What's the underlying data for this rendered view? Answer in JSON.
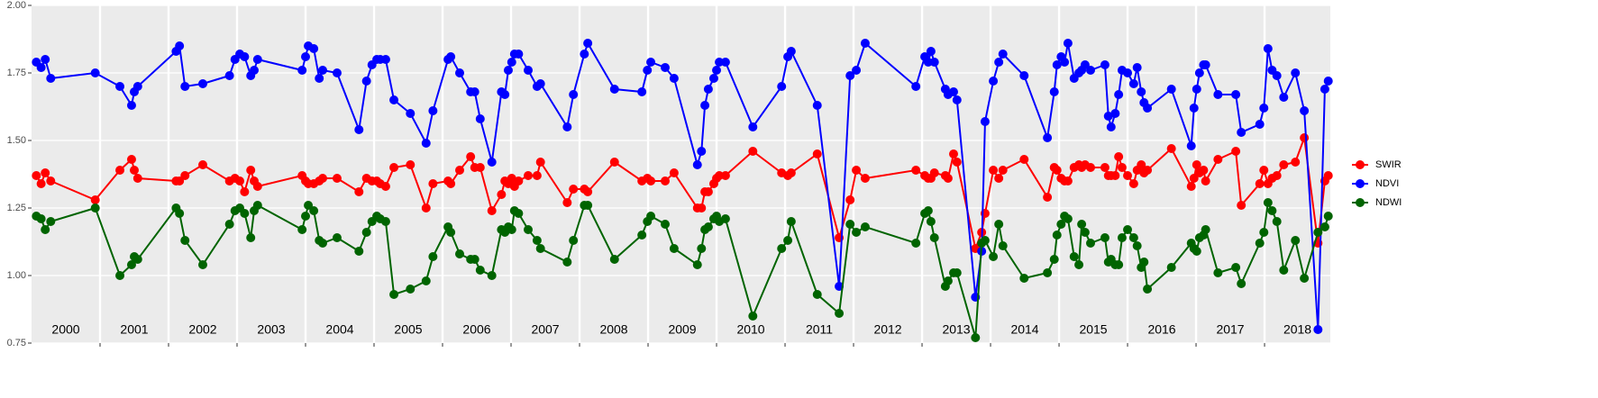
{
  "chart_data": {
    "type": "line",
    "x": [
      2000.07,
      2000.14,
      2000.2,
      2000.28,
      2000.93,
      2001.29,
      2001.46,
      2001.5,
      2001.55,
      2002.11,
      2002.16,
      2002.24,
      2002.5,
      2002.89,
      2002.97,
      2003.04,
      2003.11,
      2003.2,
      2003.25,
      2003.3,
      2003.95,
      2004.0,
      2004.04,
      2004.12,
      2004.2,
      2004.25,
      2004.46,
      2004.78,
      2004.89,
      2004.97,
      2005.04,
      2005.09,
      2005.17,
      2005.29,
      2005.53,
      2005.76,
      2005.86,
      2006.08,
      2006.12,
      2006.25,
      2006.41,
      2006.47,
      2006.55,
      2006.72,
      2006.86,
      2006.91,
      2006.96,
      2007.01,
      2007.05,
      2007.11,
      2007.25,
      2007.38,
      2007.43,
      2007.82,
      2007.91,
      2008.07,
      2008.12,
      2008.51,
      2008.91,
      2008.99,
      2009.04,
      2009.25,
      2009.38,
      2009.72,
      2009.78,
      2009.83,
      2009.88,
      2009.96,
      2010.0,
      2010.04,
      2010.13,
      2010.53,
      2010.95,
      2011.04,
      2011.09,
      2011.47,
      2011.79,
      2011.95,
      2012.04,
      2012.17,
      2012.91,
      2013.04,
      2013.09,
      2013.13,
      2013.18,
      2013.34,
      2013.38,
      2013.46,
      2013.51,
      2013.78,
      2013.87,
      2013.92,
      2014.04,
      2014.12,
      2014.18,
      2014.49,
      2014.83,
      2014.93,
      2014.97,
      2015.03,
      2015.08,
      2015.13,
      2015.22,
      2015.29,
      2015.33,
      2015.38,
      2015.46,
      2015.67,
      2015.72,
      2015.76,
      2015.82,
      2015.87,
      2015.92,
      2016.0,
      2016.09,
      2016.14,
      2016.2,
      2016.24,
      2016.29,
      2016.64,
      2016.93,
      2016.97,
      2017.01,
      2017.05,
      2017.11,
      2017.14,
      2017.32,
      2017.58,
      2017.66,
      2017.93,
      2017.99,
      2018.05,
      2018.11,
      2018.18,
      2018.28,
      2018.45,
      2018.58,
      2018.78,
      2018.88,
      2018.93
    ],
    "series": [
      {
        "name": "SWIR",
        "color": "#ff0000",
        "values": [
          1.37,
          1.34,
          1.38,
          1.35,
          1.28,
          1.39,
          1.43,
          1.39,
          1.36,
          1.35,
          1.35,
          1.37,
          1.41,
          1.35,
          1.36,
          1.35,
          1.31,
          1.39,
          1.35,
          1.33,
          1.37,
          1.35,
          1.34,
          1.34,
          1.35,
          1.36,
          1.36,
          1.31,
          1.36,
          1.35,
          1.35,
          1.34,
          1.33,
          1.4,
          1.41,
          1.25,
          1.34,
          1.35,
          1.34,
          1.39,
          1.44,
          1.4,
          1.4,
          1.24,
          1.3,
          1.35,
          1.34,
          1.36,
          1.33,
          1.35,
          1.37,
          1.37,
          1.42,
          1.27,
          1.32,
          1.32,
          1.31,
          1.42,
          1.35,
          1.36,
          1.35,
          1.35,
          1.38,
          1.25,
          1.25,
          1.31,
          1.31,
          1.34,
          1.36,
          1.37,
          1.37,
          1.46,
          1.38,
          1.37,
          1.38,
          1.45,
          1.14,
          1.28,
          1.39,
          1.36,
          1.39,
          1.37,
          1.36,
          1.36,
          1.38,
          1.37,
          1.36,
          1.45,
          1.42,
          1.1,
          1.16,
          1.23,
          1.39,
          1.36,
          1.39,
          1.43,
          1.29,
          1.4,
          1.39,
          1.36,
          1.35,
          1.35,
          1.4,
          1.41,
          1.4,
          1.41,
          1.4,
          1.4,
          1.37,
          1.37,
          1.37,
          1.44,
          1.4,
          1.37,
          1.34,
          1.39,
          1.41,
          1.38,
          1.39,
          1.47,
          1.33,
          1.36,
          1.41,
          1.38,
          1.39,
          1.35,
          1.43,
          1.46,
          1.26,
          1.34,
          1.39,
          1.34,
          1.36,
          1.37,
          1.41,
          1.42,
          1.51,
          1.12,
          1.35,
          1.37
        ]
      },
      {
        "name": "NDVI",
        "color": "#0000ff",
        "values": [
          1.79,
          1.77,
          1.8,
          1.73,
          1.75,
          1.7,
          1.63,
          1.68,
          1.7,
          1.83,
          1.85,
          1.7,
          1.71,
          1.74,
          1.8,
          1.82,
          1.81,
          1.74,
          1.76,
          1.8,
          1.76,
          1.81,
          1.85,
          1.84,
          1.73,
          1.76,
          1.75,
          1.54,
          1.72,
          1.78,
          1.8,
          1.8,
          1.8,
          1.65,
          1.6,
          1.49,
          1.61,
          1.8,
          1.81,
          1.75,
          1.68,
          1.68,
          1.58,
          1.42,
          1.68,
          1.67,
          1.76,
          1.79,
          1.82,
          1.82,
          1.76,
          1.7,
          1.71,
          1.55,
          1.67,
          1.82,
          1.86,
          1.69,
          1.68,
          1.76,
          1.79,
          1.77,
          1.73,
          1.41,
          1.46,
          1.63,
          1.69,
          1.73,
          1.76,
          1.79,
          1.79,
          1.55,
          1.7,
          1.81,
          1.83,
          1.63,
          0.96,
          1.74,
          1.76,
          1.86,
          1.7,
          1.81,
          1.79,
          1.83,
          1.79,
          1.69,
          1.67,
          1.68,
          1.65,
          0.92,
          1.09,
          1.57,
          1.72,
          1.79,
          1.82,
          1.74,
          1.51,
          1.68,
          1.78,
          1.81,
          1.79,
          1.86,
          1.73,
          1.75,
          1.76,
          1.78,
          1.76,
          1.78,
          1.59,
          1.55,
          1.6,
          1.67,
          1.76,
          1.75,
          1.71,
          1.77,
          1.68,
          1.64,
          1.62,
          1.69,
          1.48,
          1.62,
          1.69,
          1.75,
          1.78,
          1.78,
          1.67,
          1.67,
          1.53,
          1.56,
          1.62,
          1.84,
          1.76,
          1.74,
          1.66,
          1.75,
          1.61,
          0.8,
          1.69,
          1.72
        ]
      },
      {
        "name": "NDWI",
        "color": "#006400",
        "values": [
          1.22,
          1.21,
          1.17,
          1.2,
          1.25,
          1.0,
          1.04,
          1.07,
          1.06,
          1.25,
          1.23,
          1.13,
          1.04,
          1.19,
          1.24,
          1.25,
          1.23,
          1.14,
          1.24,
          1.26,
          1.17,
          1.22,
          1.26,
          1.24,
          1.13,
          1.12,
          1.14,
          1.09,
          1.16,
          1.2,
          1.22,
          1.21,
          1.2,
          0.93,
          0.95,
          0.98,
          1.07,
          1.18,
          1.16,
          1.08,
          1.06,
          1.06,
          1.02,
          1.0,
          1.17,
          1.16,
          1.18,
          1.17,
          1.24,
          1.23,
          1.17,
          1.13,
          1.1,
          1.05,
          1.13,
          1.26,
          1.26,
          1.06,
          1.15,
          1.2,
          1.22,
          1.19,
          1.1,
          1.04,
          1.1,
          1.17,
          1.18,
          1.21,
          1.22,
          1.2,
          1.21,
          0.85,
          1.1,
          1.13,
          1.2,
          0.93,
          0.86,
          1.19,
          1.16,
          1.18,
          1.12,
          1.23,
          1.24,
          1.2,
          1.14,
          0.96,
          0.98,
          1.01,
          1.01,
          0.77,
          1.12,
          1.13,
          1.07,
          1.19,
          1.11,
          0.99,
          1.01,
          1.06,
          1.15,
          1.19,
          1.22,
          1.21,
          1.07,
          1.04,
          1.19,
          1.16,
          1.12,
          1.14,
          1.05,
          1.06,
          1.04,
          1.04,
          1.14,
          1.17,
          1.14,
          1.11,
          1.03,
          1.05,
          0.95,
          1.03,
          1.12,
          1.1,
          1.09,
          1.14,
          1.15,
          1.17,
          1.01,
          1.03,
          0.97,
          1.12,
          1.16,
          1.27,
          1.24,
          1.2,
          1.02,
          1.13,
          0.99,
          1.16,
          1.18,
          1.22
        ]
      }
    ],
    "xlim": [
      2000,
      2018.96
    ],
    "xticks": [
      2001,
      2002,
      2003,
      2004,
      2005,
      2006,
      2007,
      2008,
      2009,
      2010,
      2011,
      2012,
      2013,
      2014,
      2015,
      2016,
      2017,
      2018
    ],
    "year_labels": [
      "2000",
      "2001",
      "2002",
      "2003",
      "2004",
      "2005",
      "2006",
      "2007",
      "2008",
      "2009",
      "2010",
      "2011",
      "2012",
      "2013",
      "2014",
      "2015",
      "2016",
      "2017",
      "2018"
    ],
    "ylim": [
      0.75,
      2.0
    ],
    "yticks": [
      0.75,
      {
        "value": 1,
        "label": "1.00"
      },
      1.25,
      {
        "value": 1.5,
        "label": "1.50"
      },
      1.75,
      {
        "value": 2,
        "label": "2.00"
      }
    ],
    "grid": true,
    "legend": "right"
  }
}
